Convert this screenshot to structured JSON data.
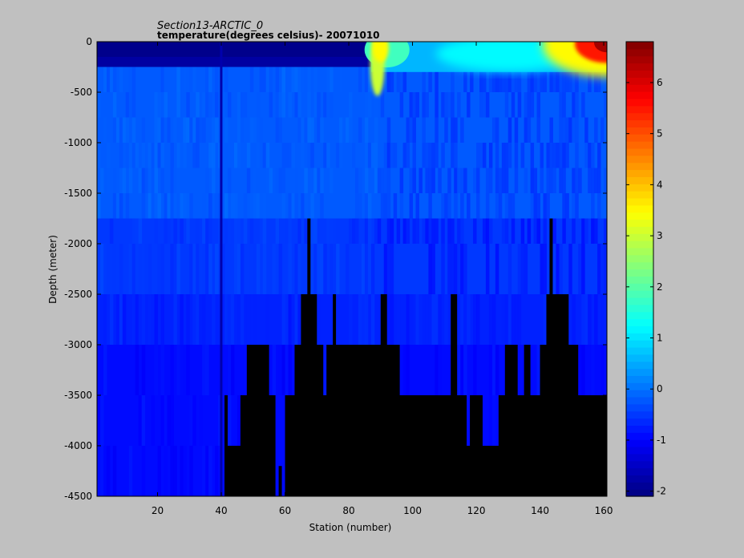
{
  "chart_data": {
    "type": "heatmap",
    "title": "Section13-ARCTIC_0",
    "subtitle": "temperature(degrees  celsius)- 20071010",
    "xlabel": "Station (number)",
    "ylabel": "Depth (meter)",
    "xlim": [
      1,
      161
    ],
    "ylim": [
      -4500,
      0
    ],
    "xticks": [
      20,
      40,
      60,
      80,
      100,
      120,
      140,
      160
    ],
    "yticks": [
      0,
      -500,
      -1000,
      -1500,
      -2000,
      -2500,
      -3000,
      -3500,
      -4000,
      -4500
    ],
    "colorbar": {
      "clim": [
        -2.1,
        6.8
      ],
      "ticks": [
        -2,
        -1,
        0,
        1,
        2,
        3,
        4,
        5,
        6
      ],
      "colormap": "jet"
    },
    "depth_levels": [
      0,
      -50,
      -150,
      -250,
      -500,
      -750,
      -1000,
      -1250,
      -1500,
      -1750,
      -2000,
      -2500,
      -3000,
      -3500,
      -4000,
      -4500
    ],
    "regions": [
      {
        "region": "surface layer stations 1-87",
        "depth": [
          -250,
          0
        ],
        "value": -1.8
      },
      {
        "region": "warm intrusion stations 87-92",
        "depth": [
          -600,
          0
        ],
        "value": 3.0
      },
      {
        "region": "surface stations 92-161",
        "depth": [
          -300,
          0
        ],
        "value": 1.0
      },
      {
        "region": "warm core stations 150-161",
        "depth": [
          -100,
          0
        ],
        "value": 6.3
      },
      {
        "region": "intermediate layer",
        "depth": [
          -1750,
          -250
        ],
        "value": -0.2
      },
      {
        "region": "deep layer",
        "depth": [
          -2500,
          -1750
        ],
        "value": -0.5
      },
      {
        "region": "deep layer",
        "depth": [
          -3000,
          -2500
        ],
        "value": -0.7
      },
      {
        "region": "bottom layer",
        "depth": [
          -4500,
          -3000
        ],
        "value": -0.9
      }
    ],
    "seafloor_depth": [
      [
        1,
        -4500
      ],
      [
        40,
        -4500
      ],
      [
        41,
        -3500
      ],
      [
        42,
        -4000
      ],
      [
        46,
        -3500
      ],
      [
        48,
        -3000
      ],
      [
        55,
        -3500
      ],
      [
        57,
        -4500
      ],
      [
        58,
        -4200
      ],
      [
        59,
        -4500
      ],
      [
        60,
        -3500
      ],
      [
        62,
        -3500
      ],
      [
        63,
        -3000
      ],
      [
        65,
        -2500
      ],
      [
        67,
        -1750
      ],
      [
        68,
        -2500
      ],
      [
        70,
        -3000
      ],
      [
        72,
        -3500
      ],
      [
        73,
        -3000
      ],
      [
        75,
        -2500
      ],
      [
        76,
        -3000
      ],
      [
        90,
        -2500
      ],
      [
        92,
        -3000
      ],
      [
        96,
        -3500
      ],
      [
        112,
        -2500
      ],
      [
        114,
        -3500
      ],
      [
        117,
        -4000
      ],
      [
        118,
        -3500
      ],
      [
        122,
        -4000
      ],
      [
        127,
        -3500
      ],
      [
        129,
        -3000
      ],
      [
        133,
        -3500
      ],
      [
        135,
        -3000
      ],
      [
        137,
        -3500
      ],
      [
        140,
        -3000
      ],
      [
        142,
        -2500
      ],
      [
        143,
        -1750
      ],
      [
        144,
        -2500
      ],
      [
        146,
        -2500
      ],
      [
        149,
        -3000
      ],
      [
        152,
        -3500
      ],
      [
        161,
        -3500
      ]
    ]
  }
}
